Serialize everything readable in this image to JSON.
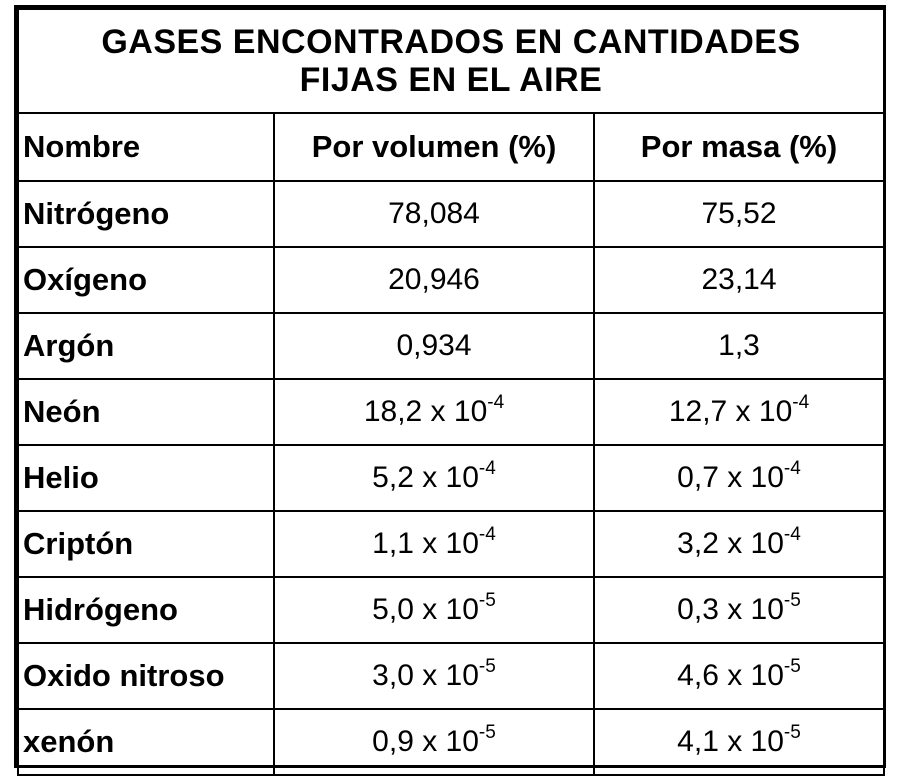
{
  "table": {
    "title_line1": "GASES ENCONTRADOS EN CANTIDADES",
    "title_line2": "FIJAS EN EL AIRE",
    "headers": [
      "Nombre",
      "Por volumen (%)",
      "Por masa (%)"
    ],
    "rows": [
      {
        "name": "Nitrógeno",
        "vol": {
          "base": "78,084",
          "exp": ""
        },
        "mass": {
          "base": "75,52",
          "exp": ""
        }
      },
      {
        "name": "Oxígeno",
        "vol": {
          "base": "20,946",
          "exp": ""
        },
        "mass": {
          "base": "23,14",
          "exp": ""
        }
      },
      {
        "name": "Argón",
        "vol": {
          "base": "0,934",
          "exp": ""
        },
        "mass": {
          "base": "1,3",
          "exp": ""
        }
      },
      {
        "name": "Neón",
        "vol": {
          "base": "18,2 x 10",
          "exp": "-4"
        },
        "mass": {
          "base": "12,7 x 10",
          "exp": "-4"
        }
      },
      {
        "name": "Helio",
        "vol": {
          "base": "5,2 x 10",
          "exp": "-4"
        },
        "mass": {
          "base": "0,7 x 10",
          "exp": "-4"
        }
      },
      {
        "name": "Criptón",
        "vol": {
          "base": "1,1 x 10",
          "exp": "-4"
        },
        "mass": {
          "base": "3,2 x 10",
          "exp": "-4"
        }
      },
      {
        "name": "Hidrógeno",
        "vol": {
          "base": "5,0 x 10",
          "exp": "-5"
        },
        "mass": {
          "base": "0,3 x 10",
          "exp": "-5"
        }
      },
      {
        "name": "Oxido nitroso",
        "vol": {
          "base": "3,0 x 10",
          "exp": "-5"
        },
        "mass": {
          "base": "4,6 x 10",
          "exp": "-5"
        }
      },
      {
        "name": "xenón",
        "vol": {
          "base": "0,9 x 10",
          "exp": "-5"
        },
        "mass": {
          "base": "4,1 x 10",
          "exp": "-5"
        }
      }
    ]
  }
}
